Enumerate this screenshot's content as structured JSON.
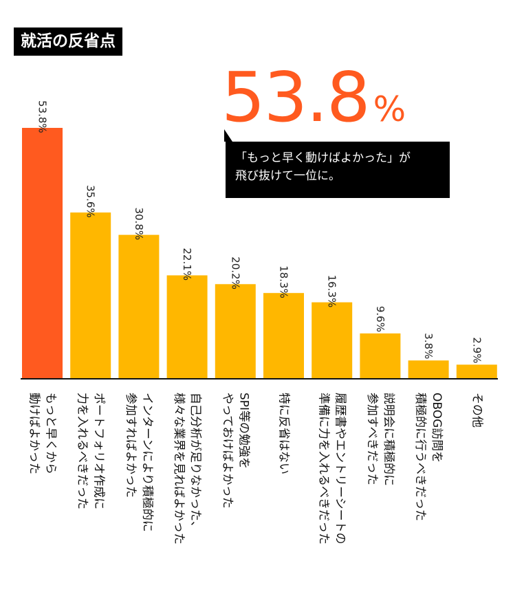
{
  "title": "就活の反省点",
  "highlight": {
    "value": "53.8",
    "unit": "%",
    "color": "#ff5a1f"
  },
  "callout": {
    "line1": "「もっと早く動けばよかった」が",
    "line2": "飛び抜けて一位に。"
  },
  "colors": {
    "highlight_bar": "#ff5a1f",
    "bar": "#ffb700",
    "axis": "#111111"
  },
  "chart_data": {
    "type": "bar",
    "orientation": "vertical",
    "unit": "%",
    "ylim": [
      0,
      53.8
    ],
    "highlight_index": 0,
    "categories": [
      [
        "もっと早くから",
        "動けばよかった"
      ],
      [
        "ポートフォリオ作成に",
        "力を入れるべきだった"
      ],
      [
        "インターンにより積極的に",
        "参加すればよかった"
      ],
      [
        "自己分析が足りなかった、",
        "様々な業界を見ればよかった"
      ],
      [
        "SPI等の勉強を",
        "やっておけばよかった"
      ],
      [
        "特に反省はない"
      ],
      [
        "履歴書やエントリーシートの",
        "準備に力を入れるべきだった"
      ],
      [
        "説明会に積極的に",
        "参加すべきだった"
      ],
      [
        "OBOG訪問を",
        "積極的に行うべきだった"
      ],
      [
        "その他"
      ]
    ],
    "value_labels": [
      "53.8%",
      "35.6%",
      "30.8%",
      "22.1%",
      "20.2%",
      "18.3%",
      "16.3%",
      "9.6%",
      "3.8%",
      "2.9%"
    ],
    "values": [
      53.8,
      35.6,
      30.8,
      22.1,
      20.2,
      18.3,
      16.3,
      9.6,
      3.8,
      2.9
    ]
  }
}
